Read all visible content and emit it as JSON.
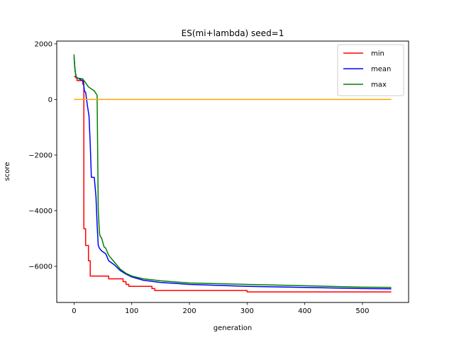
{
  "chart_data": {
    "type": "line",
    "title": "ES(mi+lambda) seed=1",
    "xlabel": "generation",
    "ylabel": "score",
    "xlim": [
      -30,
      580
    ],
    "ylim": [
      -7300,
      2100
    ],
    "xticks": [
      0,
      100,
      200,
      300,
      400,
      500
    ],
    "xtick_labels": [
      "0",
      "100",
      "200",
      "300",
      "400",
      "500"
    ],
    "yticks": [
      2000,
      0,
      -2000,
      -4000,
      -6000
    ],
    "ytick_labels": [
      "2000",
      "0",
      "−2000",
      "−4000",
      "−6000"
    ],
    "grid": false,
    "legend_position": "top-right",
    "series": [
      {
        "name": "min",
        "color": "#ff0000",
        "step": true,
        "x": [
          0,
          3,
          5,
          15,
          17,
          20,
          25,
          28,
          30,
          40,
          50,
          60,
          80,
          85,
          90,
          95,
          110,
          130,
          135,
          140,
          200,
          300,
          400,
          500,
          550
        ],
        "y": [
          820,
          780,
          680,
          550,
          -4650,
          -5250,
          -5800,
          -6350,
          -6350,
          -6350,
          -6350,
          -6450,
          -6450,
          -6550,
          -6650,
          -6720,
          -6720,
          -6720,
          -6800,
          -6870,
          -6870,
          -6920,
          -6920,
          -6920,
          -6920
        ]
      },
      {
        "name": "mean",
        "color": "#0000ff",
        "step": false,
        "x": [
          0,
          2,
          4,
          8,
          12,
          16,
          18,
          20,
          23,
          26,
          28,
          30,
          35,
          38,
          40,
          42,
          44,
          48,
          55,
          60,
          70,
          80,
          90,
          100,
          120,
          150,
          200,
          300,
          400,
          500,
          550
        ],
        "y": [
          1500,
          1000,
          800,
          750,
          700,
          680,
          300,
          260,
          -200,
          -600,
          -1600,
          -2800,
          -2800,
          -3500,
          -4500,
          -5250,
          -5350,
          -5450,
          -5550,
          -5800,
          -5950,
          -6150,
          -6280,
          -6380,
          -6500,
          -6580,
          -6650,
          -6720,
          -6760,
          -6800,
          -6810
        ]
      },
      {
        "name": "max",
        "color": "#008000",
        "step": false,
        "x": [
          0,
          1,
          3,
          6,
          10,
          15,
          20,
          25,
          30,
          35,
          40,
          42,
          44,
          45,
          48,
          52,
          55,
          60,
          70,
          80,
          90,
          100,
          120,
          150,
          200,
          300,
          400,
          500,
          550
        ],
        "y": [
          1620,
          1200,
          850,
          760,
          760,
          740,
          600,
          450,
          380,
          310,
          150,
          -4000,
          -4800,
          -4900,
          -5000,
          -5300,
          -5350,
          -5600,
          -5850,
          -6100,
          -6250,
          -6350,
          -6450,
          -6520,
          -6600,
          -6650,
          -6700,
          -6750,
          -6760
        ]
      },
      {
        "color": "#ffa500",
        "step": false,
        "x": [
          0,
          550
        ],
        "y": [
          0,
          0
        ]
      }
    ]
  }
}
